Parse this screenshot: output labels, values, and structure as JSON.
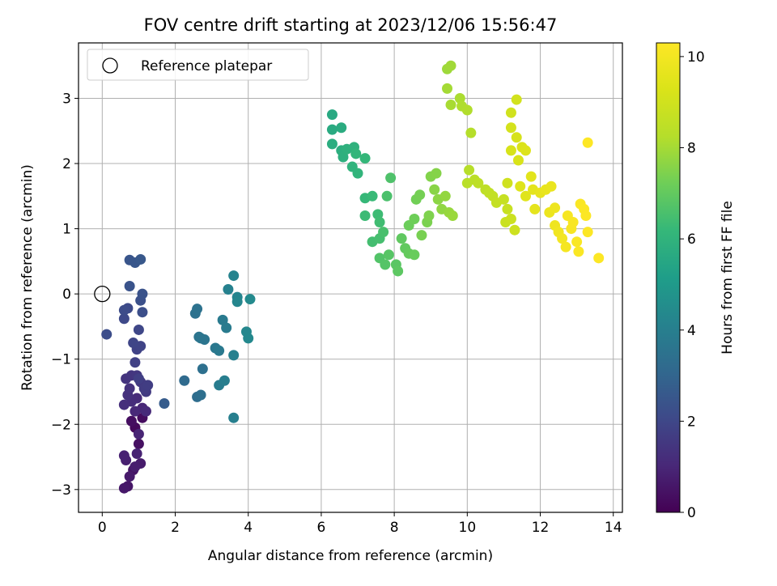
{
  "chart_data": {
    "type": "scatter",
    "title": "FOV centre drift starting at 2023/12/06 15:56:47",
    "xlabel": "Angular distance from reference (arcmin)",
    "ylabel": "Rotation from reference (arcmin)",
    "colorbar_label": "Hours from first FF file",
    "xlim": [
      -0.65,
      14.25
    ],
    "ylim": [
      -3.35,
      3.85
    ],
    "clim": [
      0,
      10.3
    ],
    "x_ticks": [
      0,
      2,
      4,
      6,
      8,
      10,
      12,
      14
    ],
    "y_ticks": [
      -3,
      -2,
      -1,
      0,
      1,
      2,
      3
    ],
    "colorbar_ticks": [
      0,
      2,
      4,
      6,
      8,
      10
    ],
    "grid": true,
    "colormap": "viridis",
    "legend": {
      "position": "top-left",
      "entries": [
        "Reference platepar"
      ]
    },
    "reference_point": {
      "x": 0,
      "y": 0
    },
    "points": [
      {
        "x": 0.9,
        "y": -2.05,
        "c": 0.2
      },
      {
        "x": 1.1,
        "y": -1.9,
        "c": 0.3
      },
      {
        "x": 0.8,
        "y": -1.95,
        "c": 0.35
      },
      {
        "x": 1.0,
        "y": -2.3,
        "c": 0.4
      },
      {
        "x": 0.85,
        "y": -2.7,
        "c": 0.5
      },
      {
        "x": 0.7,
        "y": -2.95,
        "c": 0.55
      },
      {
        "x": 0.6,
        "y": -2.98,
        "c": 0.6
      },
      {
        "x": 0.75,
        "y": -2.8,
        "c": 0.65
      },
      {
        "x": 1.05,
        "y": -2.6,
        "c": 0.7
      },
      {
        "x": 0.9,
        "y": -2.65,
        "c": 0.75
      },
      {
        "x": 0.65,
        "y": -2.55,
        "c": 0.8
      },
      {
        "x": 0.6,
        "y": -2.48,
        "c": 0.85
      },
      {
        "x": 0.95,
        "y": -2.45,
        "c": 0.9
      },
      {
        "x": 1.0,
        "y": -2.15,
        "c": 0.95
      },
      {
        "x": 1.1,
        "y": -1.75,
        "c": 1.0
      },
      {
        "x": 0.9,
        "y": -1.8,
        "c": 1.05
      },
      {
        "x": 1.2,
        "y": -1.8,
        "c": 1.1
      },
      {
        "x": 0.95,
        "y": -1.6,
        "c": 1.15
      },
      {
        "x": 0.8,
        "y": -1.65,
        "c": 1.2
      },
      {
        "x": 0.6,
        "y": -1.7,
        "c": 1.25
      },
      {
        "x": 0.7,
        "y": -1.55,
        "c": 1.3
      },
      {
        "x": 0.75,
        "y": -1.45,
        "c": 1.35
      },
      {
        "x": 0.65,
        "y": -1.3,
        "c": 1.4
      },
      {
        "x": 0.8,
        "y": -1.25,
        "c": 1.45
      },
      {
        "x": 0.95,
        "y": -1.25,
        "c": 1.5
      },
      {
        "x": 1.05,
        "y": -1.35,
        "c": 1.55
      },
      {
        "x": 1.2,
        "y": -1.5,
        "c": 1.6
      },
      {
        "x": 1.15,
        "y": -1.45,
        "c": 1.65
      },
      {
        "x": 1.25,
        "y": -1.4,
        "c": 1.7
      },
      {
        "x": 1.0,
        "y": -1.3,
        "c": 1.75
      },
      {
        "x": 0.9,
        "y": -1.05,
        "c": 1.8
      },
      {
        "x": 0.95,
        "y": -0.85,
        "c": 1.85
      },
      {
        "x": 1.05,
        "y": -0.8,
        "c": 1.9
      },
      {
        "x": 0.85,
        "y": -0.75,
        "c": 1.95
      },
      {
        "x": 1.0,
        "y": -0.55,
        "c": 2.0
      },
      {
        "x": 0.6,
        "y": -0.38,
        "c": 2.05
      },
      {
        "x": 0.7,
        "y": -0.22,
        "c": 2.1
      },
      {
        "x": 0.6,
        "y": -0.25,
        "c": 2.15
      },
      {
        "x": 0.12,
        "y": -0.62,
        "c": 2.2
      },
      {
        "x": 1.1,
        "y": -0.28,
        "c": 2.25
      },
      {
        "x": 1.05,
        "y": -0.1,
        "c": 2.3
      },
      {
        "x": 1.1,
        "y": 0.0,
        "c": 2.35
      },
      {
        "x": 0.75,
        "y": 0.12,
        "c": 2.4
      },
      {
        "x": 0.75,
        "y": 0.52,
        "c": 2.45
      },
      {
        "x": 0.9,
        "y": 0.48,
        "c": 2.5
      },
      {
        "x": 1.05,
        "y": 0.53,
        "c": 2.55
      },
      {
        "x": 1.7,
        "y": -1.68,
        "c": 2.7
      },
      {
        "x": 2.25,
        "y": -1.33,
        "c": 3.2
      },
      {
        "x": 2.6,
        "y": -1.58,
        "c": 3.3
      },
      {
        "x": 2.7,
        "y": -1.55,
        "c": 3.35
      },
      {
        "x": 2.75,
        "y": -1.15,
        "c": 3.4
      },
      {
        "x": 2.55,
        "y": -0.3,
        "c": 3.45
      },
      {
        "x": 2.6,
        "y": -0.23,
        "c": 3.5
      },
      {
        "x": 2.65,
        "y": -0.66,
        "c": 3.55
      },
      {
        "x": 2.8,
        "y": -0.7,
        "c": 3.6
      },
      {
        "x": 2.7,
        "y": -0.68,
        "c": 3.6
      },
      {
        "x": 3.1,
        "y": -0.83,
        "c": 3.7
      },
      {
        "x": 3.2,
        "y": -0.87,
        "c": 3.75
      },
      {
        "x": 3.3,
        "y": -0.4,
        "c": 3.8
      },
      {
        "x": 3.4,
        "y": -0.52,
        "c": 3.85
      },
      {
        "x": 3.2,
        "y": -1.4,
        "c": 3.9
      },
      {
        "x": 3.35,
        "y": -1.33,
        "c": 3.95
      },
      {
        "x": 3.6,
        "y": -1.9,
        "c": 4.0
      },
      {
        "x": 3.6,
        "y": -0.94,
        "c": 4.05
      },
      {
        "x": 3.45,
        "y": 0.07,
        "c": 4.1
      },
      {
        "x": 3.6,
        "y": 0.28,
        "c": 4.15
      },
      {
        "x": 3.7,
        "y": -0.05,
        "c": 4.2
      },
      {
        "x": 3.7,
        "y": -0.12,
        "c": 4.25
      },
      {
        "x": 3.95,
        "y": -0.58,
        "c": 4.3
      },
      {
        "x": 4.0,
        "y": -0.68,
        "c": 4.35
      },
      {
        "x": 4.05,
        "y": -0.08,
        "c": 4.4
      },
      {
        "x": 6.3,
        "y": 2.75,
        "c": 5.6
      },
      {
        "x": 6.3,
        "y": 2.52,
        "c": 5.65
      },
      {
        "x": 6.55,
        "y": 2.55,
        "c": 5.7
      },
      {
        "x": 6.3,
        "y": 2.3,
        "c": 5.75
      },
      {
        "x": 6.55,
        "y": 2.2,
        "c": 5.8
      },
      {
        "x": 6.6,
        "y": 2.1,
        "c": 5.85
      },
      {
        "x": 6.7,
        "y": 2.22,
        "c": 5.9
      },
      {
        "x": 6.9,
        "y": 2.25,
        "c": 5.95
      },
      {
        "x": 6.85,
        "y": 1.95,
        "c": 6.0
      },
      {
        "x": 7.0,
        "y": 1.85,
        "c": 6.05
      },
      {
        "x": 6.95,
        "y": 2.15,
        "c": 6.1
      },
      {
        "x": 7.2,
        "y": 2.08,
        "c": 6.15
      },
      {
        "x": 7.2,
        "y": 1.47,
        "c": 6.2
      },
      {
        "x": 7.4,
        "y": 1.5,
        "c": 6.25
      },
      {
        "x": 7.2,
        "y": 1.2,
        "c": 6.3
      },
      {
        "x": 7.55,
        "y": 1.22,
        "c": 6.35
      },
      {
        "x": 7.6,
        "y": 1.1,
        "c": 6.4
      },
      {
        "x": 7.4,
        "y": 0.8,
        "c": 6.45
      },
      {
        "x": 7.6,
        "y": 0.85,
        "c": 6.5
      },
      {
        "x": 7.7,
        "y": 0.95,
        "c": 6.55
      },
      {
        "x": 7.8,
        "y": 1.5,
        "c": 6.6
      },
      {
        "x": 7.9,
        "y": 1.78,
        "c": 6.65
      },
      {
        "x": 7.6,
        "y": 0.55,
        "c": 6.7
      },
      {
        "x": 7.75,
        "y": 0.45,
        "c": 6.75
      },
      {
        "x": 7.85,
        "y": 0.6,
        "c": 6.8
      },
      {
        "x": 8.05,
        "y": 0.45,
        "c": 6.85
      },
      {
        "x": 8.1,
        "y": 0.35,
        "c": 6.9
      },
      {
        "x": 8.2,
        "y": 0.85,
        "c": 6.95
      },
      {
        "x": 8.3,
        "y": 0.7,
        "c": 7.0
      },
      {
        "x": 8.4,
        "y": 0.62,
        "c": 7.05
      },
      {
        "x": 8.55,
        "y": 0.6,
        "c": 7.1
      },
      {
        "x": 8.4,
        "y": 1.05,
        "c": 7.15
      },
      {
        "x": 8.55,
        "y": 1.15,
        "c": 7.2
      },
      {
        "x": 8.6,
        "y": 1.45,
        "c": 7.25
      },
      {
        "x": 8.7,
        "y": 1.52,
        "c": 7.3
      },
      {
        "x": 8.75,
        "y": 0.9,
        "c": 7.35
      },
      {
        "x": 8.9,
        "y": 1.1,
        "c": 7.4
      },
      {
        "x": 8.95,
        "y": 1.2,
        "c": 7.45
      },
      {
        "x": 9.0,
        "y": 1.8,
        "c": 7.5
      },
      {
        "x": 9.15,
        "y": 1.85,
        "c": 7.55
      },
      {
        "x": 9.1,
        "y": 1.6,
        "c": 7.6
      },
      {
        "x": 9.2,
        "y": 1.45,
        "c": 7.65
      },
      {
        "x": 9.3,
        "y": 1.3,
        "c": 7.7
      },
      {
        "x": 9.4,
        "y": 1.5,
        "c": 7.75
      },
      {
        "x": 9.5,
        "y": 1.25,
        "c": 7.8
      },
      {
        "x": 9.6,
        "y": 1.2,
        "c": 7.85
      },
      {
        "x": 9.45,
        "y": 3.45,
        "c": 7.9
      },
      {
        "x": 9.55,
        "y": 3.5,
        "c": 7.95
      },
      {
        "x": 9.45,
        "y": 3.15,
        "c": 8.0
      },
      {
        "x": 9.55,
        "y": 2.9,
        "c": 8.05
      },
      {
        "x": 9.8,
        "y": 3.0,
        "c": 8.1
      },
      {
        "x": 9.85,
        "y": 2.88,
        "c": 8.15
      },
      {
        "x": 10.0,
        "y": 2.82,
        "c": 8.2
      },
      {
        "x": 10.1,
        "y": 2.47,
        "c": 8.25
      },
      {
        "x": 10.05,
        "y": 1.9,
        "c": 8.3
      },
      {
        "x": 10.0,
        "y": 1.7,
        "c": 8.35
      },
      {
        "x": 10.2,
        "y": 1.75,
        "c": 8.4
      },
      {
        "x": 10.3,
        "y": 1.7,
        "c": 8.45
      },
      {
        "x": 10.5,
        "y": 1.6,
        "c": 8.5
      },
      {
        "x": 10.6,
        "y": 1.55,
        "c": 8.55
      },
      {
        "x": 10.7,
        "y": 1.5,
        "c": 8.6
      },
      {
        "x": 10.8,
        "y": 1.4,
        "c": 8.65
      },
      {
        "x": 11.0,
        "y": 1.45,
        "c": 8.7
      },
      {
        "x": 11.1,
        "y": 1.3,
        "c": 8.75
      },
      {
        "x": 11.05,
        "y": 1.1,
        "c": 8.8
      },
      {
        "x": 11.2,
        "y": 1.15,
        "c": 8.85
      },
      {
        "x": 11.3,
        "y": 0.98,
        "c": 8.9
      },
      {
        "x": 11.1,
        "y": 1.7,
        "c": 8.95
      },
      {
        "x": 11.2,
        "y": 2.78,
        "c": 9.0
      },
      {
        "x": 11.35,
        "y": 2.98,
        "c": 9.05
      },
      {
        "x": 11.2,
        "y": 2.55,
        "c": 9.1
      },
      {
        "x": 11.35,
        "y": 2.4,
        "c": 9.15
      },
      {
        "x": 11.2,
        "y": 2.2,
        "c": 9.2
      },
      {
        "x": 11.4,
        "y": 2.05,
        "c": 9.25
      },
      {
        "x": 11.5,
        "y": 2.25,
        "c": 9.3
      },
      {
        "x": 11.6,
        "y": 2.2,
        "c": 9.35
      },
      {
        "x": 11.45,
        "y": 1.65,
        "c": 9.4
      },
      {
        "x": 11.6,
        "y": 1.5,
        "c": 9.45
      },
      {
        "x": 11.75,
        "y": 1.8,
        "c": 9.5
      },
      {
        "x": 11.8,
        "y": 1.6,
        "c": 9.55
      },
      {
        "x": 11.85,
        "y": 1.3,
        "c": 9.6
      },
      {
        "x": 12.0,
        "y": 1.55,
        "c": 9.65
      },
      {
        "x": 12.15,
        "y": 1.6,
        "c": 9.7
      },
      {
        "x": 12.3,
        "y": 1.65,
        "c": 9.75
      },
      {
        "x": 12.25,
        "y": 1.25,
        "c": 9.8
      },
      {
        "x": 12.4,
        "y": 1.32,
        "c": 9.85
      },
      {
        "x": 12.4,
        "y": 1.05,
        "c": 9.9
      },
      {
        "x": 12.5,
        "y": 0.95,
        "c": 9.95
      },
      {
        "x": 12.6,
        "y": 0.85,
        "c": 10.0
      },
      {
        "x": 12.7,
        "y": 0.72,
        "c": 10.05
      },
      {
        "x": 12.75,
        "y": 1.2,
        "c": 10.1
      },
      {
        "x": 12.85,
        "y": 1.0,
        "c": 10.12
      },
      {
        "x": 12.9,
        "y": 1.1,
        "c": 10.15
      },
      {
        "x": 13.0,
        "y": 0.8,
        "c": 10.18
      },
      {
        "x": 13.05,
        "y": 0.65,
        "c": 10.2
      },
      {
        "x": 13.1,
        "y": 1.38,
        "c": 10.22
      },
      {
        "x": 13.2,
        "y": 1.3,
        "c": 10.24
      },
      {
        "x": 13.25,
        "y": 1.2,
        "c": 10.26
      },
      {
        "x": 13.3,
        "y": 0.95,
        "c": 10.27
      },
      {
        "x": 13.6,
        "y": 0.55,
        "c": 10.28
      },
      {
        "x": 13.3,
        "y": 2.32,
        "c": 10.3
      }
    ]
  }
}
